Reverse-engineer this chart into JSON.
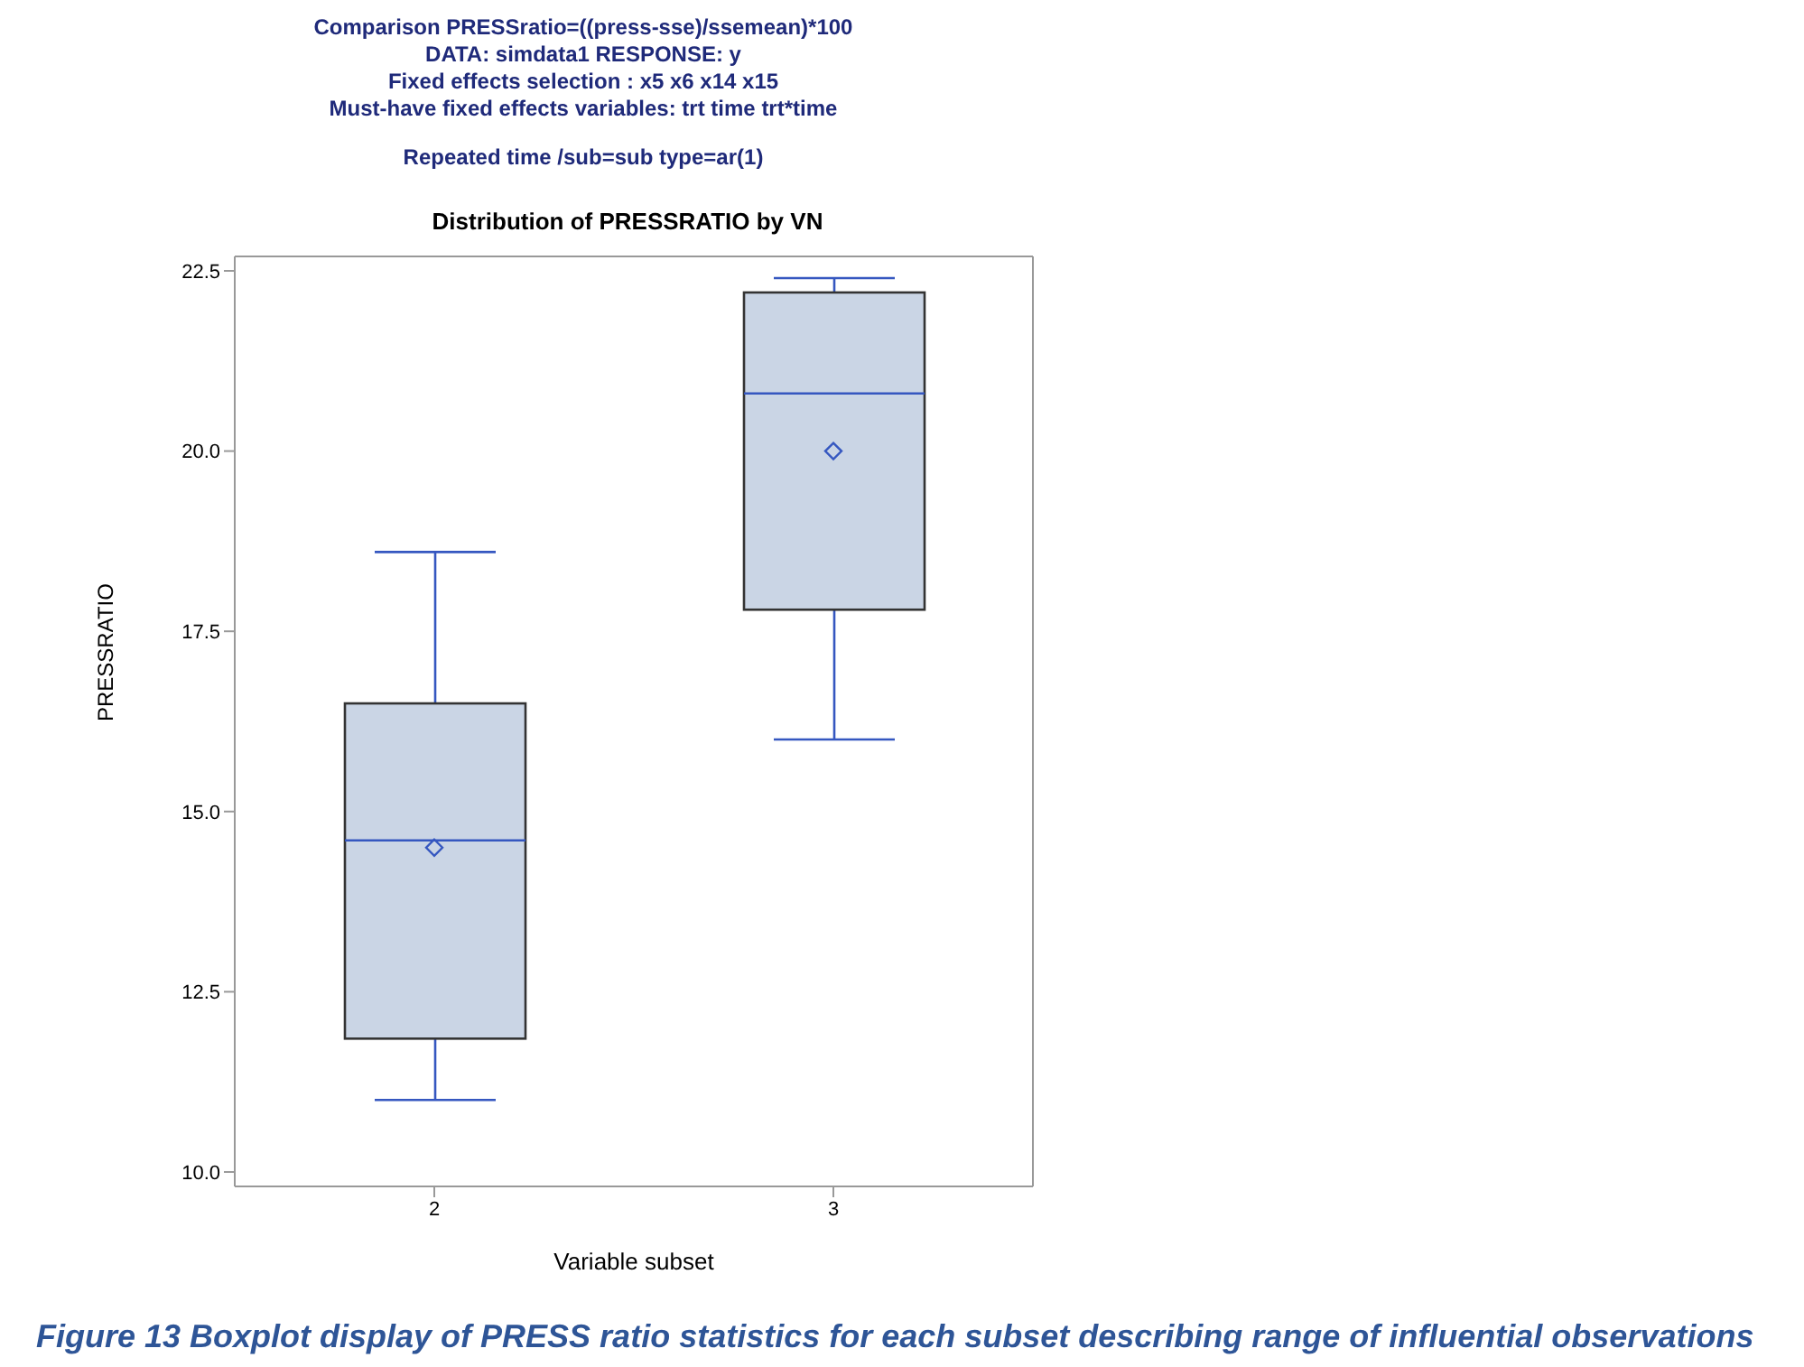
{
  "chart_data": {
    "type": "box",
    "title": "Distribution of PRESSRATIO by VN",
    "subtitle": "Comparison PRESSratio=((press-sse)/ssemean)*100\nDATA: simdata1 RESPONSE: y\nFixed effects selection : x5 x6 x14 x15\nMust-have fixed effects variables: trt time trt*time\n\nRepeated time /sub=sub type=ar(1)",
    "xlabel": "Variable subset",
    "ylabel": "PRESSRATIO",
    "categories": [
      "2",
      "3"
    ],
    "boxes": [
      {
        "low": 11.0,
        "q1": 11.85,
        "median": 14.6,
        "q3": 16.5,
        "high": 18.6,
        "mean": 14.5
      },
      {
        "low": 16.0,
        "q1": 17.8,
        "median": 20.8,
        "q3": 22.2,
        "high": 22.4,
        "mean": 20.0
      }
    ],
    "color": "#cad5e5",
    "ylim": [
      9.8,
      22.7
    ],
    "yticks": [
      {
        "value": 10,
        "label": "10.0"
      },
      12.5,
      {
        "value": 15,
        "label": "15.0"
      },
      17.5,
      {
        "value": 20,
        "label": "20.0"
      },
      22.5
    ],
    "annotations": [
      "Figure 13 Boxplot display of PRESS ratio statistics for each subset describing range of influential observations"
    ]
  }
}
